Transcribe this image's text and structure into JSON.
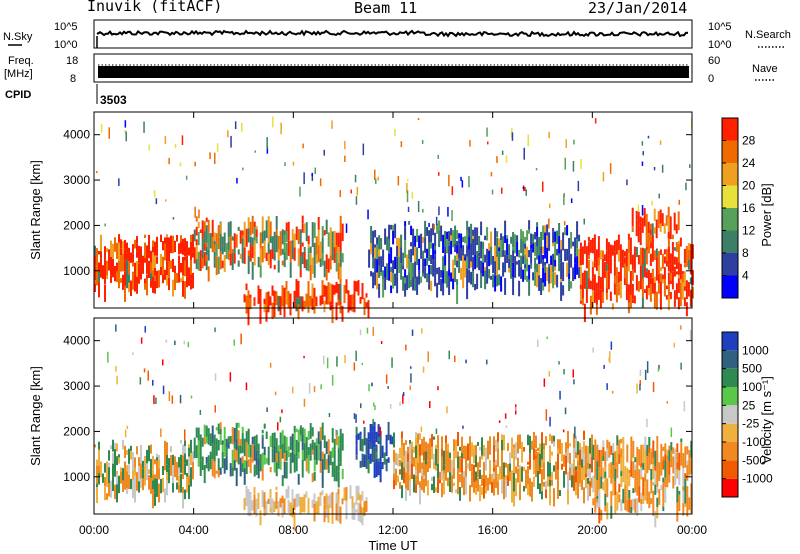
{
  "header": {
    "station": "Inuvik (fitACF)",
    "beam": "Beam 11",
    "date": "23/Jan/2014"
  },
  "panels": {
    "nsky_label": "N.Sky",
    "nsky_ticks": [
      "10^5",
      "10^0"
    ],
    "nsearch_label": "N.Search",
    "nsearch_ticks": [
      "10^5",
      "10^0"
    ],
    "freq_label": "Freq.",
    "freq_unit": "[MHz]",
    "freq_ticks": [
      "18",
      "8"
    ],
    "nave_label": "Nave",
    "nave_ticks": [
      "60",
      "0"
    ],
    "cpid_label": "CPID",
    "cpid_value": "3503"
  },
  "colors": {
    "power_scale": [
      "#0000ff",
      "#2f3f9f",
      "#3b7f66",
      "#56a05a",
      "#e8e03c",
      "#f0a020",
      "#f06a00",
      "#ff2000"
    ],
    "velocity_scale": [
      "#1f3fbf",
      "#306080",
      "#2e8a50",
      "#59c848",
      "#c8c8c8",
      "#f0b040",
      "#f08a20",
      "#f05a00",
      "#ff0000"
    ]
  },
  "chart_data": [
    {
      "type": "heatmap",
      "title": "",
      "xlabel": "",
      "ylabel": "Slant Range [km]",
      "x_ticks": [
        "00:00",
        "04:00",
        "08:00",
        "12:00",
        "16:00",
        "20:00",
        "00:00"
      ],
      "y_ticks": [
        "1000",
        "2000",
        "3000",
        "4000"
      ],
      "ylim": [
        180,
        4500
      ],
      "colorbar": {
        "label": "Power [dB]",
        "ticks": [
          "4",
          "8",
          "12",
          "16",
          "20",
          "24",
          "28"
        ],
        "range": [
          0,
          30
        ]
      },
      "scatter_regions": [
        {
          "t_start": 0.0,
          "t_end": 4.0,
          "r_start": 700,
          "r_end": 1700,
          "dominant": "Power high (red/orange)"
        },
        {
          "t_start": 4.0,
          "t_end": 10.0,
          "r_start": 1100,
          "r_end": 2100,
          "dominant": "Power mixed (green/orange)"
        },
        {
          "t_start": 6.0,
          "t_end": 11.0,
          "r_start": 200,
          "r_end": 700,
          "dominant": "Power high (red)"
        },
        {
          "t_start": 11.0,
          "t_end": 19.5,
          "r_start": 700,
          "r_end": 2000,
          "dominant": "Power low-mid (blue/green)"
        },
        {
          "t_start": 19.5,
          "t_end": 24.0,
          "r_start": 300,
          "r_end": 1700,
          "dominant": "Power high (red)"
        },
        {
          "t_start": 21.5,
          "t_end": 23.5,
          "r_start": 1800,
          "r_end": 2300,
          "dominant": "Power high (red)"
        }
      ]
    },
    {
      "type": "heatmap",
      "title": "",
      "xlabel": "Time UT",
      "ylabel": "Slant Range [km]",
      "x_ticks": [
        "00:00",
        "04:00",
        "08:00",
        "12:00",
        "16:00",
        "20:00",
        "00:00"
      ],
      "y_ticks": [
        "1000",
        "2000",
        "3000",
        "4000"
      ],
      "ylim": [
        180,
        4500
      ],
      "colorbar": {
        "label": "Velocity [m s⁻¹]",
        "ticks": [
          "1000",
          "500",
          "100",
          "25",
          "-25",
          "-100",
          "-500",
          "-1000"
        ],
        "range": [
          -1000,
          1000
        ]
      },
      "scatter_regions": [
        {
          "t_start": 0.0,
          "t_end": 4.0,
          "r_start": 700,
          "r_end": 1700,
          "dominant": "Velocity mixed (green/orange)"
        },
        {
          "t_start": 4.0,
          "t_end": 10.0,
          "r_start": 1100,
          "r_end": 2100,
          "dominant": "Velocity positive (green)"
        },
        {
          "t_start": 6.0,
          "t_end": 11.0,
          "r_start": 200,
          "r_end": 700,
          "dominant": "Velocity near zero (grey/orange)"
        },
        {
          "t_start": 10.5,
          "t_end": 12.0,
          "r_start": 1200,
          "r_end": 2100,
          "dominant": "Velocity high positive (blue)"
        },
        {
          "t_start": 12.0,
          "t_end": 20.0,
          "r_start": 700,
          "r_end": 1900,
          "dominant": "Velocity negative (orange)"
        },
        {
          "t_start": 20.0,
          "t_end": 24.0,
          "r_start": 300,
          "r_end": 1800,
          "dominant": "Velocity negative (orange/grey)"
        }
      ]
    }
  ]
}
